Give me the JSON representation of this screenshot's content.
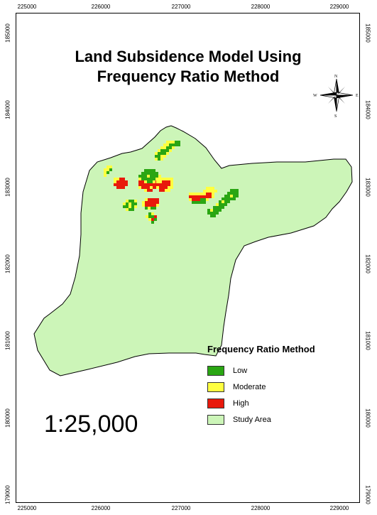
{
  "title_line1": "Land Subsidence Model Using",
  "title_line2": "Frequency Ratio Method",
  "scale": "1:25,000",
  "grid": {
    "eastings": [
      "225000",
      "226000",
      "227000",
      "228000",
      "229000"
    ],
    "northings": [
      "185000",
      "184000",
      "183000",
      "182000",
      "181000",
      "180000",
      "179000"
    ]
  },
  "north_arrow": {
    "n": "N",
    "s": "S",
    "e": "E",
    "w": "W"
  },
  "legend": {
    "title": "Frequency Ratio Method",
    "items": [
      {
        "label": "Low",
        "color": "#2aa613"
      },
      {
        "label": "Moderate",
        "color": "#ffff40"
      },
      {
        "label": "High",
        "color": "#e8190c"
      },
      {
        "label": "Study Area",
        "color": "#ccf5b8"
      }
    ]
  },
  "colors": {
    "study_area": "#ccf5b8",
    "low": "#2aa613",
    "moderate": "#ffff40",
    "high": "#e8190c"
  }
}
